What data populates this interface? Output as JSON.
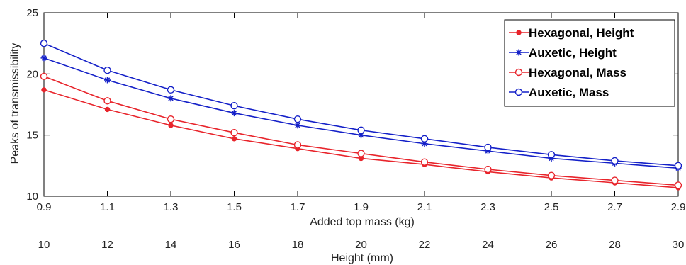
{
  "chart_data": {
    "type": "line",
    "xlabel": "Added top mass (kg)",
    "x2label": "Height (mm)",
    "ylabel": "Peaks of transmissibility",
    "ylim": [
      10,
      25
    ],
    "y_ticks": [
      10,
      15,
      20,
      25
    ],
    "x_ticks": [
      "0.9",
      "1.1",
      "1.3",
      "1.5",
      "1.7",
      "1.9",
      "2.1",
      "2.3",
      "2.5",
      "2.7",
      "2.9"
    ],
    "x2_ticks": [
      "10",
      "12",
      "14",
      "16",
      "18",
      "20",
      "22",
      "24",
      "26",
      "28",
      "30"
    ],
    "legend_position": "top-right",
    "grid": false,
    "series": [
      {
        "name": "Hexagonal, Height",
        "color": "#e8242b",
        "marker": "dot",
        "values": [
          18.7,
          17.1,
          15.8,
          14.7,
          13.9,
          13.1,
          12.6,
          12.0,
          11.5,
          11.1,
          10.7
        ]
      },
      {
        "name": "Auxetic, Height",
        "color": "#1420c8",
        "marker": "star",
        "values": [
          21.3,
          19.5,
          18.0,
          16.8,
          15.8,
          15.0,
          14.3,
          13.7,
          13.1,
          12.7,
          12.3
        ]
      },
      {
        "name": "Hexagonal, Mass",
        "color": "#e8242b",
        "marker": "circle",
        "values": [
          19.8,
          17.8,
          16.3,
          15.2,
          14.2,
          13.5,
          12.8,
          12.2,
          11.7,
          11.3,
          10.9
        ]
      },
      {
        "name": "Auxetic, Mass",
        "color": "#1420c8",
        "marker": "circle",
        "values": [
          22.5,
          20.3,
          18.7,
          17.4,
          16.3,
          15.4,
          14.7,
          14.0,
          13.4,
          12.9,
          12.5
        ]
      }
    ]
  }
}
